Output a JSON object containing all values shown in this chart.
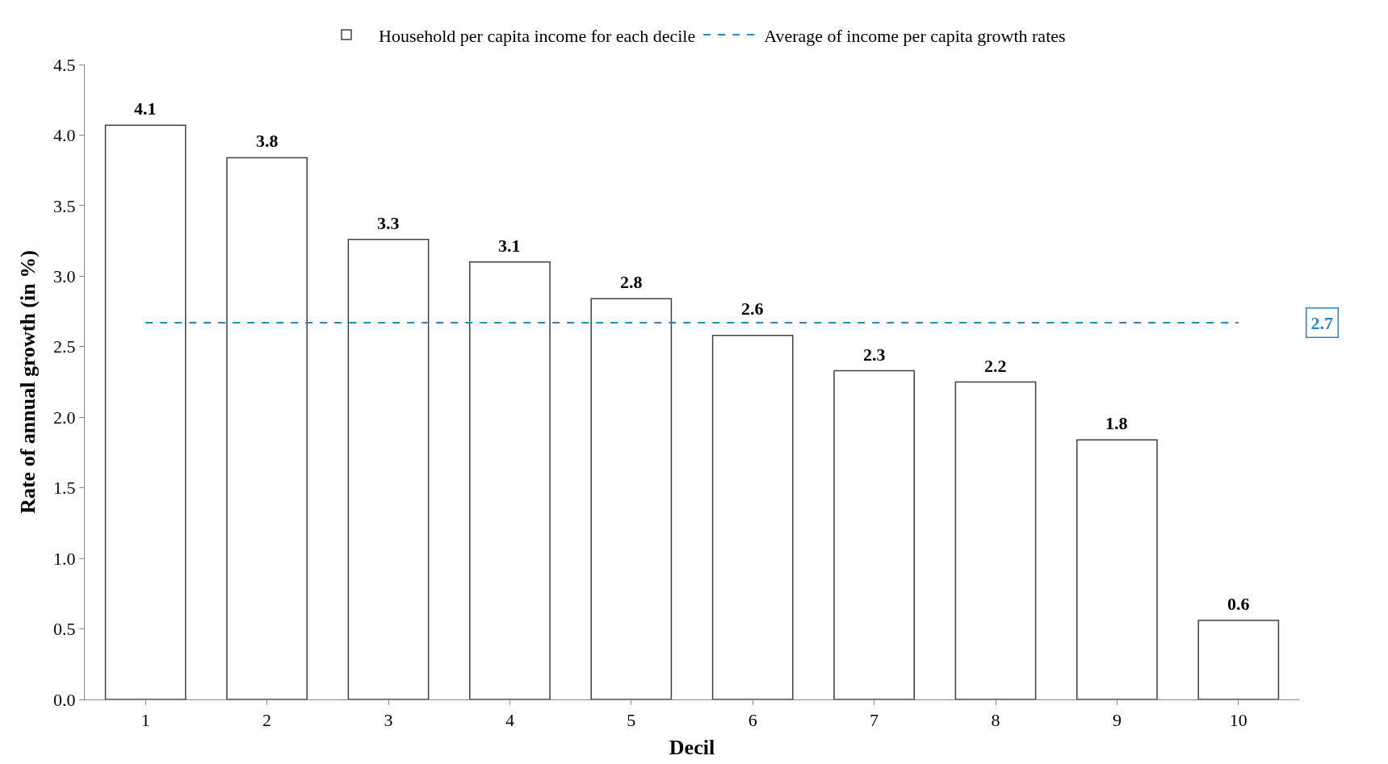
{
  "chart_data": {
    "type": "bar",
    "xlabel": "Decil",
    "ylabel": "Rate of annual growth (in %)",
    "categories": [
      "1",
      "2",
      "3",
      "4",
      "5",
      "6",
      "7",
      "8",
      "9",
      "10"
    ],
    "series": [
      {
        "name": "Household per capita income for each decile",
        "color": "#ffffff",
        "values": [
          4.07,
          3.84,
          3.26,
          3.1,
          2.84,
          2.58,
          2.33,
          2.25,
          1.84,
          0.56
        ],
        "value_labels": [
          "4.1",
          "3.8",
          "3.3",
          "3.1",
          "2.8",
          "2.6",
          "2.3",
          "2.2",
          "1.8",
          "0.6"
        ]
      },
      {
        "name": "Average of income per capita growth rates",
        "type": "line",
        "color": "#1f88d0",
        "line_style": "dashed",
        "marker": "none",
        "values": [
          2.67,
          2.67,
          2.67,
          2.67,
          2.67,
          2.67,
          2.67,
          2.67,
          2.67,
          2.67
        ]
      }
    ],
    "annotations": [
      "2.7"
    ],
    "ylim": [
      0,
      4.5
    ],
    "yticks": [
      {
        "value": 0,
        "label": "0.0"
      },
      {
        "value": 0.5,
        "label": "0.5"
      },
      {
        "value": 1,
        "label": "1.0"
      },
      {
        "value": 1.5,
        "label": "1.5"
      },
      {
        "value": 2,
        "label": "2.0"
      },
      {
        "value": 2.5,
        "label": "2.5"
      },
      {
        "value": 3,
        "label": "3.0"
      },
      {
        "value": 3.5,
        "label": "3.5"
      },
      {
        "value": 4,
        "label": "4.0"
      },
      {
        "value": 4.5,
        "label": "4.5"
      }
    ],
    "grid": false,
    "legend": "top"
  }
}
